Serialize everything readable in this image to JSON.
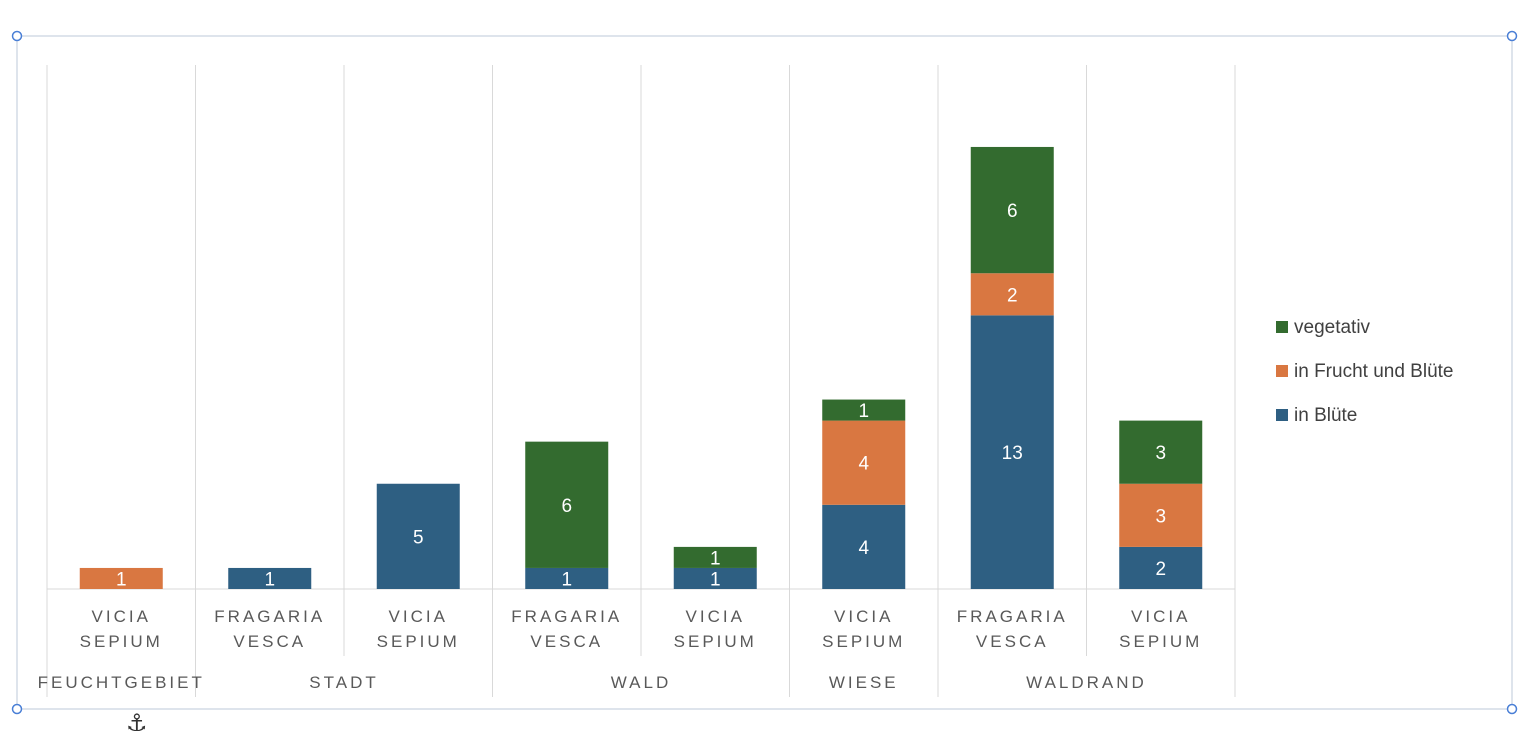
{
  "chart_data": {
    "type": "bar",
    "stacked": true,
    "groups": [
      {
        "name": "FEUCHTGEBIET",
        "categories": [
          "VICIA|SEPIUM"
        ]
      },
      {
        "name": "STADT",
        "categories": [
          "FRAGARIA|VESCA",
          "VICIA|SEPIUM"
        ]
      },
      {
        "name": "WALD",
        "categories": [
          "FRAGARIA|VESCA",
          "VICIA|SEPIUM"
        ]
      },
      {
        "name": "WIESE",
        "categories": [
          "VICIA|SEPIUM"
        ]
      },
      {
        "name": "WALDRAND",
        "categories": [
          "FRAGARIA|VESCA",
          "VICIA|SEPIUM"
        ]
      }
    ],
    "categories": [
      "VICIA SEPIUM",
      "FRAGARIA VESCA",
      "VICIA SEPIUM",
      "FRAGARIA VESCA",
      "VICIA SEPIUM",
      "VICIA SEPIUM",
      "FRAGARIA VESCA",
      "VICIA SEPIUM"
    ],
    "series": [
      {
        "name": "in Blüte",
        "color": "#2e5f82",
        "values": [
          0,
          1,
          5,
          1,
          1,
          4,
          13,
          2
        ]
      },
      {
        "name": "in Frucht und Blüte",
        "color": "#d97741",
        "values": [
          1,
          0,
          0,
          0,
          0,
          4,
          2,
          3
        ]
      },
      {
        "name": "vegetativ",
        "color": "#336b2f",
        "values": [
          0,
          0,
          0,
          6,
          1,
          1,
          6,
          3
        ]
      }
    ],
    "ylim": [
      0,
      25
    ],
    "grid": "vertical",
    "legend_position": "right",
    "data_labels": true
  },
  "legend_order": [
    2,
    1,
    0
  ],
  "colors": {
    "grid": "#d9d9d9",
    "frame": "#c9d3e0",
    "handle": "#4a7fd6"
  },
  "icons": {
    "anchor": "anchor-icon"
  }
}
